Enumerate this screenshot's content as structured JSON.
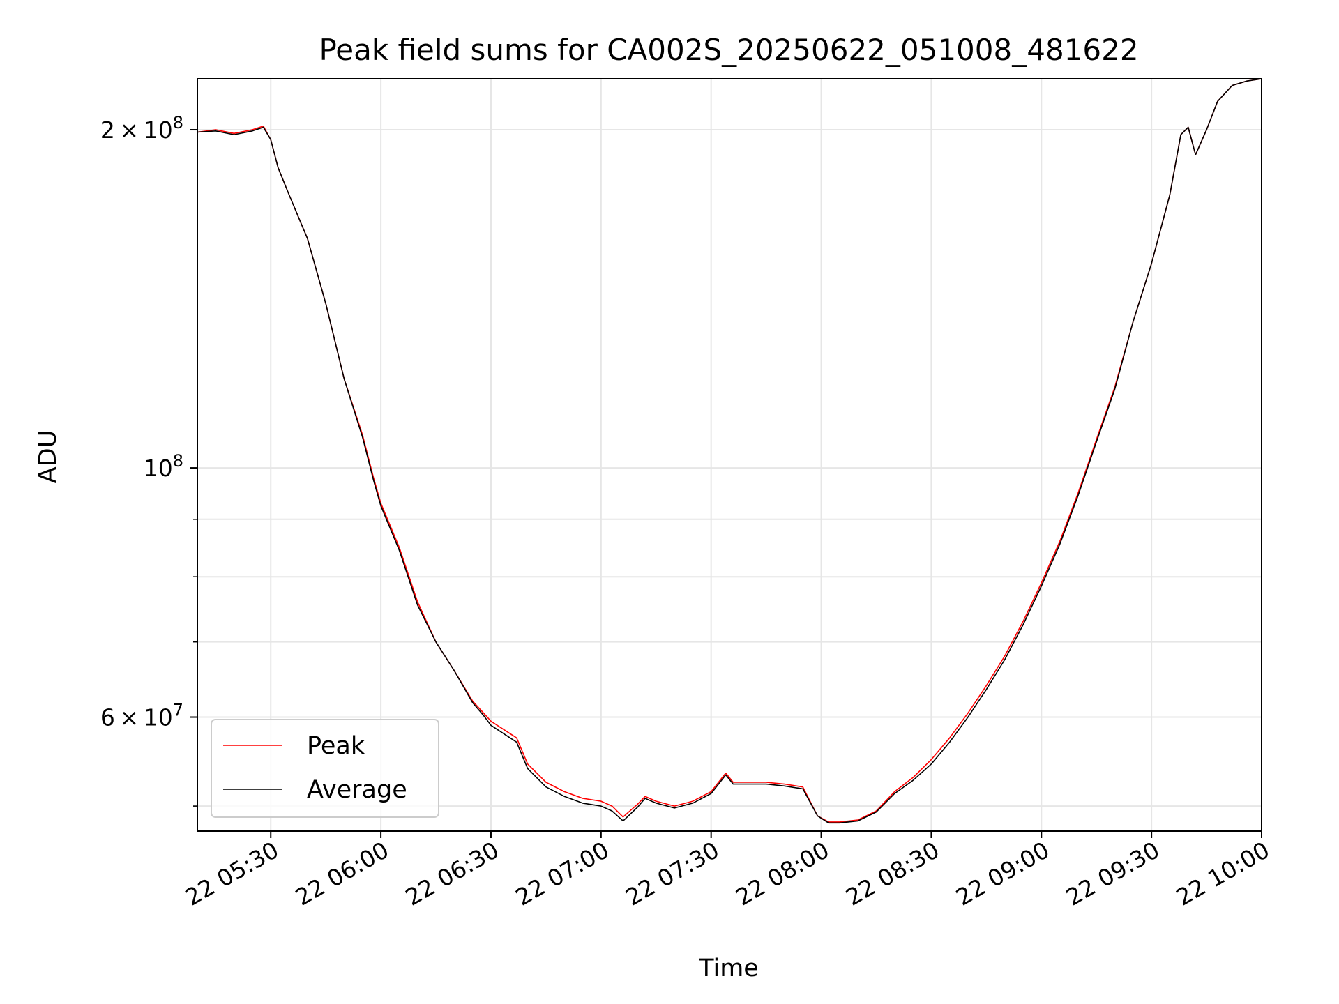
{
  "chart_data": {
    "type": "line",
    "title": "Peak field sums for CA002S_20250622_051008_481622",
    "xlabel": "Time",
    "ylabel": "ADU",
    "y_scale": "log",
    "grid": true,
    "legend_position": "lower-left",
    "xlim": [
      "2025-06-22 05:10",
      "2025-06-22 10:00"
    ],
    "ylim": [
      47500000,
      222000000
    ],
    "x_ticks": [
      {
        "value": "2025-06-22 05:30",
        "label": "22 05:30"
      },
      {
        "value": "2025-06-22 06:00",
        "label": "22 06:00"
      },
      {
        "value": "2025-06-22 06:30",
        "label": "22 06:30"
      },
      {
        "value": "2025-06-22 07:00",
        "label": "22 07:00"
      },
      {
        "value": "2025-06-22 07:30",
        "label": "22 07:30"
      },
      {
        "value": "2025-06-22 08:00",
        "label": "22 08:00"
      },
      {
        "value": "2025-06-22 08:30",
        "label": "22 08:30"
      },
      {
        "value": "2025-06-22 09:00",
        "label": "22 09:00"
      },
      {
        "value": "2025-06-22 09:30",
        "label": "22 09:30"
      },
      {
        "value": "2025-06-22 10:00",
        "label": "22 10:00"
      }
    ],
    "y_major_ticks": [
      {
        "value": 200000000,
        "mantissa": "2",
        "exponent": "8"
      },
      {
        "value": 100000000,
        "mantissa": "",
        "exponent": "8"
      },
      {
        "value": 60000000,
        "mantissa": "6",
        "exponent": "7"
      }
    ],
    "y_minor_ticks": [
      50000000,
      70000000,
      80000000,
      90000000
    ],
    "series": [
      {
        "name": "Peak",
        "color": "#ff0000",
        "x": [
          "2025-06-22 05:10",
          "2025-06-22 05:15",
          "2025-06-22 05:20",
          "2025-06-22 05:25",
          "2025-06-22 05:28",
          "2025-06-22 05:30",
          "2025-06-22 05:32",
          "2025-06-22 05:35",
          "2025-06-22 05:40",
          "2025-06-22 05:45",
          "2025-06-22 05:50",
          "2025-06-22 05:55",
          "2025-06-22 05:58",
          "2025-06-22 06:00",
          "2025-06-22 06:05",
          "2025-06-22 06:10",
          "2025-06-22 06:15",
          "2025-06-22 06:20",
          "2025-06-22 06:25",
          "2025-06-22 06:28",
          "2025-06-22 06:30",
          "2025-06-22 06:37",
          "2025-06-22 06:40",
          "2025-06-22 06:45",
          "2025-06-22 06:50",
          "2025-06-22 06:55",
          "2025-06-22 07:00",
          "2025-06-22 07:03",
          "2025-06-22 07:06",
          "2025-06-22 07:10",
          "2025-06-22 07:12",
          "2025-06-22 07:15",
          "2025-06-22 07:20",
          "2025-06-22 07:25",
          "2025-06-22 07:30",
          "2025-06-22 07:34",
          "2025-06-22 07:36",
          "2025-06-22 07:40",
          "2025-06-22 07:45",
          "2025-06-22 07:50",
          "2025-06-22 07:55",
          "2025-06-22 07:59",
          "2025-06-22 08:02",
          "2025-06-22 08:05",
          "2025-06-22 08:10",
          "2025-06-22 08:15",
          "2025-06-22 08:20",
          "2025-06-22 08:25",
          "2025-06-22 08:30",
          "2025-06-22 08:35",
          "2025-06-22 08:40",
          "2025-06-22 08:45",
          "2025-06-22 08:50",
          "2025-06-22 08:55",
          "2025-06-22 09:00",
          "2025-06-22 09:05",
          "2025-06-22 09:10",
          "2025-06-22 09:15",
          "2025-06-22 09:20",
          "2025-06-22 09:25",
          "2025-06-22 09:30",
          "2025-06-22 09:35",
          "2025-06-22 09:38",
          "2025-06-22 09:40",
          "2025-06-22 09:42",
          "2025-06-22 09:45",
          "2025-06-22 09:48",
          "2025-06-22 09:52",
          "2025-06-22 09:56",
          "2025-06-22 10:00"
        ],
        "y": [
          199000000,
          200000000,
          198500000,
          200000000,
          201500000,
          196000000,
          185000000,
          175000000,
          160000000,
          140000000,
          120000000,
          107000000,
          98000000,
          93000000,
          85000000,
          76000000,
          70000000,
          66000000,
          62000000,
          60500000,
          59500000,
          57500000,
          54500000,
          52500000,
          51500000,
          50800000,
          50500000,
          50000000,
          48900000,
          50200000,
          51000000,
          50500000,
          50000000,
          50500000,
          51500000,
          53500000,
          52500000,
          52500000,
          52500000,
          52300000,
          52000000,
          49000000,
          48400000,
          48400000,
          48600000,
          49500000,
          51500000,
          53000000,
          55000000,
          57500000,
          60500000,
          64000000,
          68000000,
          73000000,
          79000000,
          86000000,
          95000000,
          106000000,
          118000000,
          135000000,
          152000000,
          175000000,
          198000000,
          201000000,
          190000000,
          200000000,
          212000000,
          219000000,
          221000000,
          222000000
        ]
      },
      {
        "name": "Average",
        "color": "#000000",
        "x": [
          "2025-06-22 05:10",
          "2025-06-22 05:15",
          "2025-06-22 05:20",
          "2025-06-22 05:25",
          "2025-06-22 05:28",
          "2025-06-22 05:30",
          "2025-06-22 05:32",
          "2025-06-22 05:35",
          "2025-06-22 05:40",
          "2025-06-22 05:45",
          "2025-06-22 05:50",
          "2025-06-22 05:55",
          "2025-06-22 05:58",
          "2025-06-22 06:00",
          "2025-06-22 06:05",
          "2025-06-22 06:10",
          "2025-06-22 06:15",
          "2025-06-22 06:20",
          "2025-06-22 06:25",
          "2025-06-22 06:28",
          "2025-06-22 06:30",
          "2025-06-22 06:37",
          "2025-06-22 06:40",
          "2025-06-22 06:45",
          "2025-06-22 06:50",
          "2025-06-22 06:55",
          "2025-06-22 07:00",
          "2025-06-22 07:03",
          "2025-06-22 07:06",
          "2025-06-22 07:10",
          "2025-06-22 07:12",
          "2025-06-22 07:15",
          "2025-06-22 07:20",
          "2025-06-22 07:25",
          "2025-06-22 07:30",
          "2025-06-22 07:34",
          "2025-06-22 07:36",
          "2025-06-22 07:40",
          "2025-06-22 07:45",
          "2025-06-22 07:50",
          "2025-06-22 07:55",
          "2025-06-22 07:59",
          "2025-06-22 08:02",
          "2025-06-22 08:05",
          "2025-06-22 08:10",
          "2025-06-22 08:15",
          "2025-06-22 08:20",
          "2025-06-22 08:25",
          "2025-06-22 08:30",
          "2025-06-22 08:35",
          "2025-06-22 08:40",
          "2025-06-22 08:45",
          "2025-06-22 08:50",
          "2025-06-22 08:55",
          "2025-06-22 09:00",
          "2025-06-22 09:05",
          "2025-06-22 09:10",
          "2025-06-22 09:15",
          "2025-06-22 09:20",
          "2025-06-22 09:25",
          "2025-06-22 09:30",
          "2025-06-22 09:35",
          "2025-06-22 09:38",
          "2025-06-22 09:40",
          "2025-06-22 09:42",
          "2025-06-22 09:45",
          "2025-06-22 09:48",
          "2025-06-22 09:52",
          "2025-06-22 09:56",
          "2025-06-22 10:00"
        ],
        "y": [
          199000000,
          199500000,
          198000000,
          199500000,
          201000000,
          196000000,
          185000000,
          175000000,
          160000000,
          140000000,
          120000000,
          106500000,
          97500000,
          92500000,
          84500000,
          75500000,
          70000000,
          66000000,
          61800000,
          60200000,
          59000000,
          57000000,
          54000000,
          52000000,
          51000000,
          50300000,
          50000000,
          49500000,
          48500000,
          49900000,
          50800000,
          50300000,
          49800000,
          50300000,
          51300000,
          53300000,
          52300000,
          52300000,
          52300000,
          52100000,
          51800000,
          49000000,
          48300000,
          48300000,
          48500000,
          49400000,
          51300000,
          52700000,
          54500000,
          57000000,
          60000000,
          63500000,
          67500000,
          72500000,
          78500000,
          85500000,
          94500000,
          105500000,
          117500000,
          135000000,
          152000000,
          175000000,
          198000000,
          201000000,
          190000000,
          200000000,
          212000000,
          219000000,
          221000000,
          222000000
        ]
      }
    ]
  }
}
